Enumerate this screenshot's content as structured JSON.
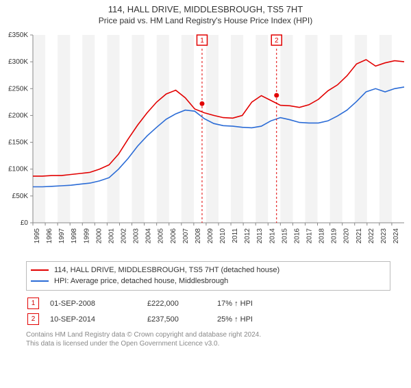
{
  "title": "114, HALL DRIVE, MIDDLESBROUGH, TS5 7HT",
  "subtitle": "Price paid vs. HM Land Registry's House Price Index (HPI)",
  "chart": {
    "type": "line",
    "x_years": [
      1995,
      1996,
      1997,
      1998,
      1999,
      2000,
      2001,
      2002,
      2003,
      2004,
      2005,
      2006,
      2007,
      2008,
      2009,
      2010,
      2011,
      2012,
      2013,
      2014,
      2015,
      2016,
      2017,
      2018,
      2019,
      2020,
      2021,
      2022,
      2023,
      2024
    ],
    "ylim": [
      0,
      350000
    ],
    "ytick_step": 50000,
    "ytick_labels": [
      "£0",
      "£50K",
      "£100K",
      "£150K",
      "£200K",
      "£250K",
      "£300K",
      "£350K"
    ],
    "ylabel_fontsize": 10,
    "xlabel_fontsize": 10,
    "plot_background": "#ffffff",
    "alt_band_color": "#f3f3f3",
    "axis_color": "#888888",
    "line_width": 1.6,
    "series": [
      {
        "name": "price_paid",
        "color": "#e20000",
        "values_k": [
          87,
          87,
          88,
          88,
          90,
          92,
          94,
          100,
          108,
          128,
          156,
          182,
          205,
          225,
          240,
          247,
          233,
          212,
          205,
          200,
          196,
          195,
          200,
          225,
          237,
          228,
          219,
          218,
          215,
          220,
          230,
          246,
          257,
          274,
          296,
          304,
          292,
          298,
          302,
          300
        ]
      },
      {
        "name": "hpi",
        "color": "#2a6bd6",
        "values_k": [
          67,
          67,
          68,
          69,
          70,
          72,
          74,
          78,
          84,
          100,
          120,
          143,
          162,
          178,
          193,
          203,
          210,
          208,
          194,
          185,
          181,
          180,
          178,
          177,
          180,
          190,
          196,
          192,
          187,
          186,
          186,
          190,
          199,
          210,
          226,
          244,
          250,
          244,
          250,
          253
        ]
      }
    ],
    "sales": [
      {
        "id": "1",
        "year_frac": 2008.67,
        "value_k": 222,
        "color": "#e20000"
      },
      {
        "id": "2",
        "year_frac": 2014.69,
        "value_k": 237.5,
        "color": "#e20000"
      }
    ],
    "marker_radius": 3.5,
    "marker_box_size": 15,
    "marker_border_width": 1.5,
    "dashed_line_dash": "3,3"
  },
  "legend": {
    "row1": {
      "color": "#e20000",
      "label": "114, HALL DRIVE, MIDDLESBROUGH, TS5 7HT (detached house)"
    },
    "row2": {
      "color": "#2a6bd6",
      "label": "HPI: Average price, detached house, Middlesbrough"
    }
  },
  "sales_table": {
    "rows": [
      {
        "id": "1",
        "date": "01-SEP-2008",
        "price": "£222,000",
        "pct": "17% ↑ HPI"
      },
      {
        "id": "2",
        "date": "10-SEP-2014",
        "price": "£237,500",
        "pct": "25% ↑ HPI"
      }
    ]
  },
  "footnote_line1": "Contains HM Land Registry data © Crown copyright and database right 2024.",
  "footnote_line2": "This data is licensed under the Open Government Licence v3.0."
}
